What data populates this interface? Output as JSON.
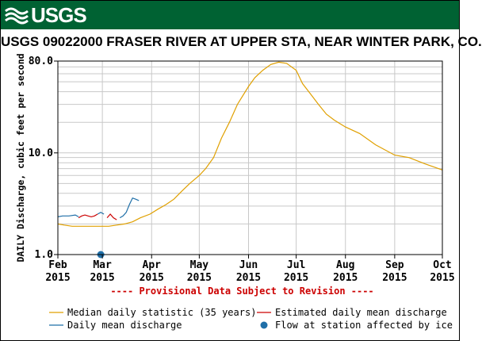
{
  "header": {
    "logo_text": "USGS"
  },
  "chart_data": {
    "type": "line",
    "title": "USGS 09022000 FRASER RIVER AT UPPER STA, NEAR WINTER PARK, CO.",
    "ylabel": "DAILY Discharge, cubic feet per second",
    "xlabel": "",
    "yscale": "log",
    "ylim": [
      1.0,
      80.0
    ],
    "xlim": [
      "2015-02-01",
      "2015-10-01"
    ],
    "grid": true,
    "y_ticks": [
      {
        "value": 1.0,
        "label": "1.0"
      },
      {
        "value": 10.0,
        "label": "10.0"
      },
      {
        "value": 80.0,
        "label": "80.0"
      }
    ],
    "x_ticks": [
      {
        "date": "2015-02-01",
        "month": "Feb",
        "year": "2015"
      },
      {
        "date": "2015-03-01",
        "month": "Mar",
        "year": "2015"
      },
      {
        "date": "2015-04-01",
        "month": "Apr",
        "year": "2015"
      },
      {
        "date": "2015-05-01",
        "month": "May",
        "year": "2015"
      },
      {
        "date": "2015-06-01",
        "month": "Jun",
        "year": "2015"
      },
      {
        "date": "2015-07-01",
        "month": "Jul",
        "year": "2015"
      },
      {
        "date": "2015-08-01",
        "month": "Aug",
        "year": "2015"
      },
      {
        "date": "2015-09-01",
        "month": "Sep",
        "year": "2015"
      },
      {
        "date": "2015-10-01",
        "month": "Oct",
        "year": "2015"
      }
    ],
    "annotation": "---- Provisional Data Subject to Revision ----",
    "series": [
      {
        "name": "Median daily statistic (35 years)",
        "color": "#e0a000",
        "points": [
          [
            "2015-02-01",
            2.0
          ],
          [
            "2015-02-05",
            1.95
          ],
          [
            "2015-02-10",
            1.9
          ],
          [
            "2015-02-15",
            1.9
          ],
          [
            "2015-02-20",
            1.9
          ],
          [
            "2015-02-25",
            1.9
          ],
          [
            "2015-03-01",
            1.9
          ],
          [
            "2015-03-05",
            1.9
          ],
          [
            "2015-03-10",
            1.95
          ],
          [
            "2015-03-15",
            2.0
          ],
          [
            "2015-03-20",
            2.1
          ],
          [
            "2015-03-25",
            2.3
          ],
          [
            "2015-03-31",
            2.5
          ],
          [
            "2015-04-05",
            2.8
          ],
          [
            "2015-04-10",
            3.1
          ],
          [
            "2015-04-15",
            3.5
          ],
          [
            "2015-04-20",
            4.2
          ],
          [
            "2015-04-25",
            5.0
          ],
          [
            "2015-05-01",
            6.0
          ],
          [
            "2015-05-05",
            7.0
          ],
          [
            "2015-05-10",
            9.0
          ],
          [
            "2015-05-15",
            14.0
          ],
          [
            "2015-05-20",
            20.0
          ],
          [
            "2015-05-25",
            30.0
          ],
          [
            "2015-06-01",
            45.0
          ],
          [
            "2015-06-05",
            55.0
          ],
          [
            "2015-06-10",
            65.0
          ],
          [
            "2015-06-15",
            74.0
          ],
          [
            "2015-06-20",
            78.0
          ],
          [
            "2015-06-25",
            76.0
          ],
          [
            "2015-07-01",
            65.0
          ],
          [
            "2015-07-05",
            48.0
          ],
          [
            "2015-07-10",
            38.0
          ],
          [
            "2015-07-15",
            30.0
          ],
          [
            "2015-07-20",
            24.0
          ],
          [
            "2015-07-25",
            21.0
          ],
          [
            "2015-08-01",
            18.0
          ],
          [
            "2015-08-10",
            15.5
          ],
          [
            "2015-08-20",
            12.0
          ],
          [
            "2015-09-01",
            9.5
          ],
          [
            "2015-09-10",
            9.0
          ],
          [
            "2015-09-20",
            7.8
          ],
          [
            "2015-10-01",
            6.8
          ]
        ]
      },
      {
        "name": "Estimated daily mean discharge",
        "color": "#cc0000",
        "points": [
          [
            "2015-02-14",
            2.3
          ],
          [
            "2015-02-16",
            2.4
          ],
          [
            "2015-02-18",
            2.45
          ],
          [
            "2015-02-20",
            2.4
          ],
          [
            "2015-02-22",
            2.35
          ],
          [
            "2015-02-24",
            2.4
          ],
          [
            "2015-02-26",
            2.5
          ],
          [
            "2015-03-04",
            2.3
          ],
          [
            "2015-03-06",
            2.5
          ],
          [
            "2015-03-08",
            2.3
          ],
          [
            "2015-03-10",
            2.2
          ]
        ]
      },
      {
        "name": "Daily mean discharge",
        "color": "#1f6fa8",
        "segments": [
          [
            [
              "2015-02-01",
              2.35
            ],
            [
              "2015-02-04",
              2.4
            ],
            [
              "2015-02-08",
              2.4
            ],
            [
              "2015-02-12",
              2.45
            ],
            [
              "2015-02-14",
              2.35
            ]
          ],
          [
            [
              "2015-02-26",
              2.5
            ],
            [
              "2015-02-28",
              2.6
            ],
            [
              "2015-03-02",
              2.5
            ]
          ],
          [
            [
              "2015-03-12",
              2.3
            ],
            [
              "2015-03-14",
              2.4
            ],
            [
              "2015-03-16",
              2.6
            ],
            [
              "2015-03-18",
              3.1
            ],
            [
              "2015-03-20",
              3.6
            ],
            [
              "2015-03-22",
              3.5
            ],
            [
              "2015-03-24",
              3.4
            ]
          ]
        ]
      },
      {
        "name": "Flow at station affected by ice",
        "color": "#1f6fa8",
        "points": [
          [
            "2015-02-28",
            1.0
          ]
        ]
      }
    ]
  }
}
